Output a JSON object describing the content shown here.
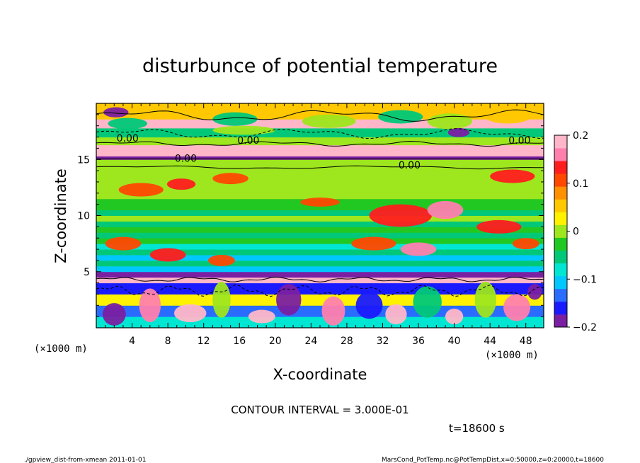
{
  "chart_data": {
    "type": "heatmap",
    "title": "disturbunce of potential temperature",
    "xlabel": "X-coordinate",
    "ylabel": "Z-coordinate",
    "x_unit": "(×1000 m)",
    "y_unit": "(×1000 m)",
    "xlim": [
      0,
      50
    ],
    "ylim": [
      0,
      20
    ],
    "x_ticks": [
      4,
      8,
      12,
      16,
      20,
      24,
      28,
      32,
      36,
      40,
      44,
      48
    ],
    "y_ticks": [
      5,
      10,
      15
    ],
    "colorbar": {
      "range": [
        -0.2,
        0.2
      ],
      "ticks": [
        {
          "value": 0.2,
          "label": "0.2"
        },
        {
          "value": 0.1,
          "label": "0.1"
        },
        {
          "value": 0,
          "label": "0"
        },
        {
          "value": -0.1,
          "label": "−0.1"
        },
        {
          "value": -0.2,
          "label": "−0.2"
        }
      ],
      "colors": [
        "#7a1fa2",
        "#1a1aff",
        "#2a6cff",
        "#00c8ff",
        "#00e6d2",
        "#00c878",
        "#22c822",
        "#9ee61e",
        "#fff200",
        "#ffc800",
        "#ff9000",
        "#ff4800",
        "#ff1e1e",
        "#ff7fae",
        "#ffb6c8"
      ]
    },
    "contour_labels": [
      {
        "text": "0.00",
        "x": 3.5,
        "z": 16.6
      },
      {
        "text": "0.00",
        "x": 17.0,
        "z": 16.4
      },
      {
        "text": "0.00",
        "x": 47.3,
        "z": 16.4
      },
      {
        "text": "0.00",
        "x": 10.0,
        "z": 14.8
      },
      {
        "text": "0.00",
        "x": 35.0,
        "z": 14.2
      }
    ],
    "layers": [
      {
        "z0": 0.0,
        "z1": 1.0,
        "value": -0.07
      },
      {
        "z0": 1.0,
        "z1": 2.0,
        "value": -0.13
      },
      {
        "z0": 2.0,
        "z1": 3.0,
        "value": 0.02
      },
      {
        "z0": 3.0,
        "z1": 4.0,
        "value": -0.16
      },
      {
        "z0": 4.0,
        "z1": 4.5,
        "value": 0.2
      },
      {
        "z0": 4.5,
        "z1": 5.0,
        "value": -0.18
      },
      {
        "z0": 5.0,
        "z1": 5.5,
        "value": -0.12
      },
      {
        "z0": 5.5,
        "z1": 6.0,
        "value": -0.06
      },
      {
        "z0": 6.0,
        "z1": 6.5,
        "value": -0.1
      },
      {
        "z0": 6.5,
        "z1": 7.0,
        "value": -0.04
      },
      {
        "z0": 7.0,
        "z1": 7.5,
        "value": -0.07
      },
      {
        "z0": 7.5,
        "z1": 8.0,
        "value": -0.02
      },
      {
        "z0": 8.0,
        "z1": 8.5,
        "value": -0.05
      },
      {
        "z0": 8.5,
        "z1": 9.0,
        "value": -0.02
      },
      {
        "z0": 9.0,
        "z1": 9.5,
        "value": -0.05
      },
      {
        "z0": 9.5,
        "z1": 10.0,
        "value": -0.01
      },
      {
        "z0": 10.0,
        "z1": 10.5,
        "value": -0.04
      },
      {
        "z0": 10.5,
        "z1": 11.0,
        "value": -0.02
      },
      {
        "z0": 11.0,
        "z1": 11.5,
        "value": -0.03
      },
      {
        "z0": 11.5,
        "z1": 12.0,
        "value": -0.01
      },
      {
        "z0": 12.0,
        "z1": 13.0,
        "value": 0.0
      },
      {
        "z0": 13.0,
        "z1": 15.0,
        "value": 0.01
      },
      {
        "z0": 15.0,
        "z1": 15.3,
        "value": -0.18
      },
      {
        "z0": 15.3,
        "z1": 16.3,
        "value": 0.2
      },
      {
        "z0": 16.3,
        "z1": 17.0,
        "value": 0.0
      },
      {
        "z0": 17.0,
        "z1": 17.8,
        "value": -0.05
      },
      {
        "z0": 17.8,
        "z1": 18.6,
        "value": 0.2
      },
      {
        "z0": 18.6,
        "z1": 20.0,
        "value": 0.05
      }
    ],
    "patches": [
      {
        "x": 2.0,
        "z": 1.2,
        "rx": 1.3,
        "rz": 1.0,
        "value": -0.19
      },
      {
        "x": 6.0,
        "z": 2.0,
        "rx": 1.2,
        "rz": 1.5,
        "value": 0.16
      },
      {
        "x": 10.5,
        "z": 1.3,
        "rx": 1.8,
        "rz": 0.8,
        "value": 0.2
      },
      {
        "x": 14.0,
        "z": 2.5,
        "rx": 1.0,
        "rz": 1.6,
        "value": 0.0
      },
      {
        "x": 18.5,
        "z": 1.0,
        "rx": 1.5,
        "rz": 0.6,
        "value": 0.18
      },
      {
        "x": 21.5,
        "z": 2.5,
        "rx": 1.4,
        "rz": 1.4,
        "value": -0.19
      },
      {
        "x": 26.5,
        "z": 1.5,
        "rx": 1.3,
        "rz": 1.3,
        "value": 0.15
      },
      {
        "x": 30.5,
        "z": 2.0,
        "rx": 1.5,
        "rz": 1.2,
        "value": -0.16
      },
      {
        "x": 33.5,
        "z": 1.2,
        "rx": 1.2,
        "rz": 0.9,
        "value": 0.19
      },
      {
        "x": 37.0,
        "z": 2.3,
        "rx": 1.6,
        "rz": 1.4,
        "value": -0.05
      },
      {
        "x": 40.0,
        "z": 1.0,
        "rx": 1.0,
        "rz": 0.7,
        "value": 0.2
      },
      {
        "x": 43.5,
        "z": 2.5,
        "rx": 1.2,
        "rz": 1.6,
        "value": 0.0
      },
      {
        "x": 47.0,
        "z": 1.8,
        "rx": 1.5,
        "rz": 1.2,
        "value": 0.17
      },
      {
        "x": 49.0,
        "z": 3.2,
        "rx": 0.8,
        "rz": 0.7,
        "value": -0.2
      },
      {
        "x": 5.0,
        "z": 12.3,
        "rx": 2.5,
        "rz": 0.6,
        "value": 0.12
      },
      {
        "x": 9.5,
        "z": 12.8,
        "rx": 1.6,
        "rz": 0.5,
        "value": 0.14
      },
      {
        "x": 15.0,
        "z": 13.3,
        "rx": 2.0,
        "rz": 0.5,
        "value": 0.12
      },
      {
        "x": 25.0,
        "z": 11.2,
        "rx": 2.2,
        "rz": 0.4,
        "value": 0.1
      },
      {
        "x": 34.0,
        "z": 10.0,
        "rx": 3.5,
        "rz": 1.0,
        "value": 0.14
      },
      {
        "x": 39.0,
        "z": 10.5,
        "rx": 2.0,
        "rz": 0.8,
        "value": 0.16
      },
      {
        "x": 46.5,
        "z": 13.5,
        "rx": 2.5,
        "rz": 0.6,
        "value": 0.13
      },
      {
        "x": 3.0,
        "z": 7.5,
        "rx": 2.0,
        "rz": 0.6,
        "value": 0.11
      },
      {
        "x": 8.0,
        "z": 6.5,
        "rx": 2.0,
        "rz": 0.6,
        "value": 0.13
      },
      {
        "x": 14.0,
        "z": 6.0,
        "rx": 1.5,
        "rz": 0.5,
        "value": 0.12
      },
      {
        "x": 31.0,
        "z": 7.5,
        "rx": 2.5,
        "rz": 0.6,
        "value": 0.12
      },
      {
        "x": 36.0,
        "z": 7.0,
        "rx": 2.0,
        "rz": 0.6,
        "value": 0.15
      },
      {
        "x": 45.0,
        "z": 9.0,
        "rx": 2.5,
        "rz": 0.6,
        "value": 0.13
      },
      {
        "x": 48.0,
        "z": 7.5,
        "rx": 1.5,
        "rz": 0.5,
        "value": 0.12
      },
      {
        "x": 2.2,
        "z": 19.2,
        "rx": 1.4,
        "rz": 0.45,
        "value": -0.2
      },
      {
        "x": 3.5,
        "z": 18.2,
        "rx": 2.2,
        "rz": 0.5,
        "value": -0.05
      },
      {
        "x": 15.5,
        "z": 18.6,
        "rx": 2.5,
        "rz": 0.6,
        "value": -0.05
      },
      {
        "x": 16.5,
        "z": 17.6,
        "rx": 3.5,
        "rz": 0.4,
        "value": 0.0
      },
      {
        "x": 26.0,
        "z": 18.4,
        "rx": 3.0,
        "rz": 0.6,
        "value": 0.0
      },
      {
        "x": 34.0,
        "z": 18.8,
        "rx": 2.5,
        "rz": 0.6,
        "value": -0.05
      },
      {
        "x": 39.5,
        "z": 18.4,
        "rx": 2.5,
        "rz": 0.7,
        "value": 0.0
      },
      {
        "x": 40.5,
        "z": 17.4,
        "rx": 1.2,
        "rz": 0.4,
        "value": -0.19
      },
      {
        "x": 46.0,
        "z": 18.8,
        "rx": 2.5,
        "rz": 0.6,
        "value": 0.06
      }
    ]
  },
  "contour_interval_text": "CONTOUR INTERVAL = 3.000E-01",
  "time_text": "t=18600 s",
  "footer_left": "./gpview_dist-from-xmean   2011-01-01",
  "footer_right": "MarsCond_PotTemp.nc@PotTempDist,x=0:50000,z=0:20000,t=18600"
}
